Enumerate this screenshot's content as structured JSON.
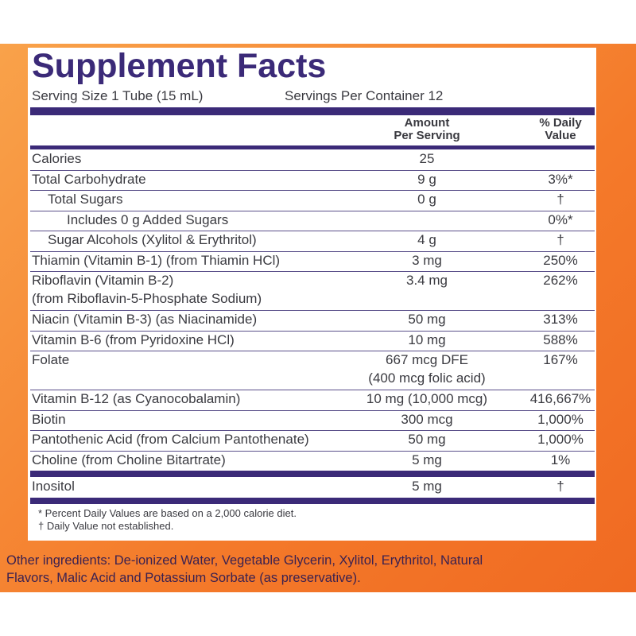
{
  "header": {
    "title": "Supplement Facts",
    "serving_size": "Serving Size 1 Tube (15 mL)",
    "servings_per_container": "Servings Per Container 12"
  },
  "table": {
    "columns": {
      "amount": [
        "Amount",
        "Per Serving"
      ],
      "dv": [
        "% Daily",
        "Value"
      ]
    },
    "rows": [
      {
        "name": [
          "Calories"
        ],
        "amount": [
          "25"
        ]
      },
      {
        "name": [
          "Total Carbohydrate"
        ],
        "amount": [
          "9 g"
        ],
        "dv": "3%*"
      },
      {
        "name": [
          "Total Sugars"
        ],
        "amount": [
          "0 g"
        ],
        "dv": "†"
      },
      {
        "name": [
          "Includes 0 g Added Sugars"
        ],
        "dv": "0%*"
      },
      {
        "name": [
          "Sugar Alcohols (Xylitol & Erythritol)"
        ],
        "amount": [
          "4 g"
        ],
        "dv": "†"
      },
      {
        "name": [
          "Thiamin (Vitamin B-1) (from Thiamin HCl)"
        ],
        "amount": [
          "3 mg"
        ],
        "dv": "250%"
      },
      {
        "name": [
          "Riboflavin (Vitamin B-2)",
          "(from Riboflavin-5-Phosphate Sodium)"
        ],
        "amount": [
          "3.4 mg"
        ],
        "dv": "262%"
      },
      {
        "name": [
          "Niacin (Vitamin B-3) (as Niacinamide)"
        ],
        "amount": [
          "50 mg"
        ],
        "dv": "313%"
      },
      {
        "name": [
          "Vitamin B-6 (from Pyridoxine HCl)"
        ],
        "amount": [
          "10 mg"
        ],
        "dv": "588%"
      },
      {
        "name": [
          "Folate"
        ],
        "amount": [
          "667 mcg DFE",
          "(400 mcg folic acid)"
        ],
        "dv": "167%"
      },
      {
        "name": [
          "Vitamin B-12 (as Cyanocobalamin)"
        ],
        "amount": [
          "10 mg (10,000 mcg)"
        ],
        "dv": "416,667%"
      },
      {
        "name": [
          "Biotin"
        ],
        "amount": [
          "300 mcg"
        ],
        "dv": "1,000%"
      },
      {
        "name": [
          "Pantothenic Acid (from Calcium Pantothenate)"
        ],
        "amount": [
          "50 mg"
        ],
        "dv": "1,000%"
      },
      {
        "name": [
          "Choline (from Choline Bitartrate)"
        ],
        "amount": [
          "5 mg"
        ],
        "dv": "1%"
      },
      {
        "name": [
          "Inositol"
        ],
        "amount": [
          "5 mg"
        ],
        "dv": "†"
      }
    ]
  },
  "footnotes": [
    "* Percent Daily Values are based on a 2,000 calorie diet.",
    "† Daily Value not established."
  ],
  "other_ingredients": [
    "Other ingredients: De-ionized Water, Vegetable Glycerin, Xylitol, Erythritol, Natural",
    "Flavors, Malic Acid and Potassium Sorbate (as preservative)."
  ]
}
